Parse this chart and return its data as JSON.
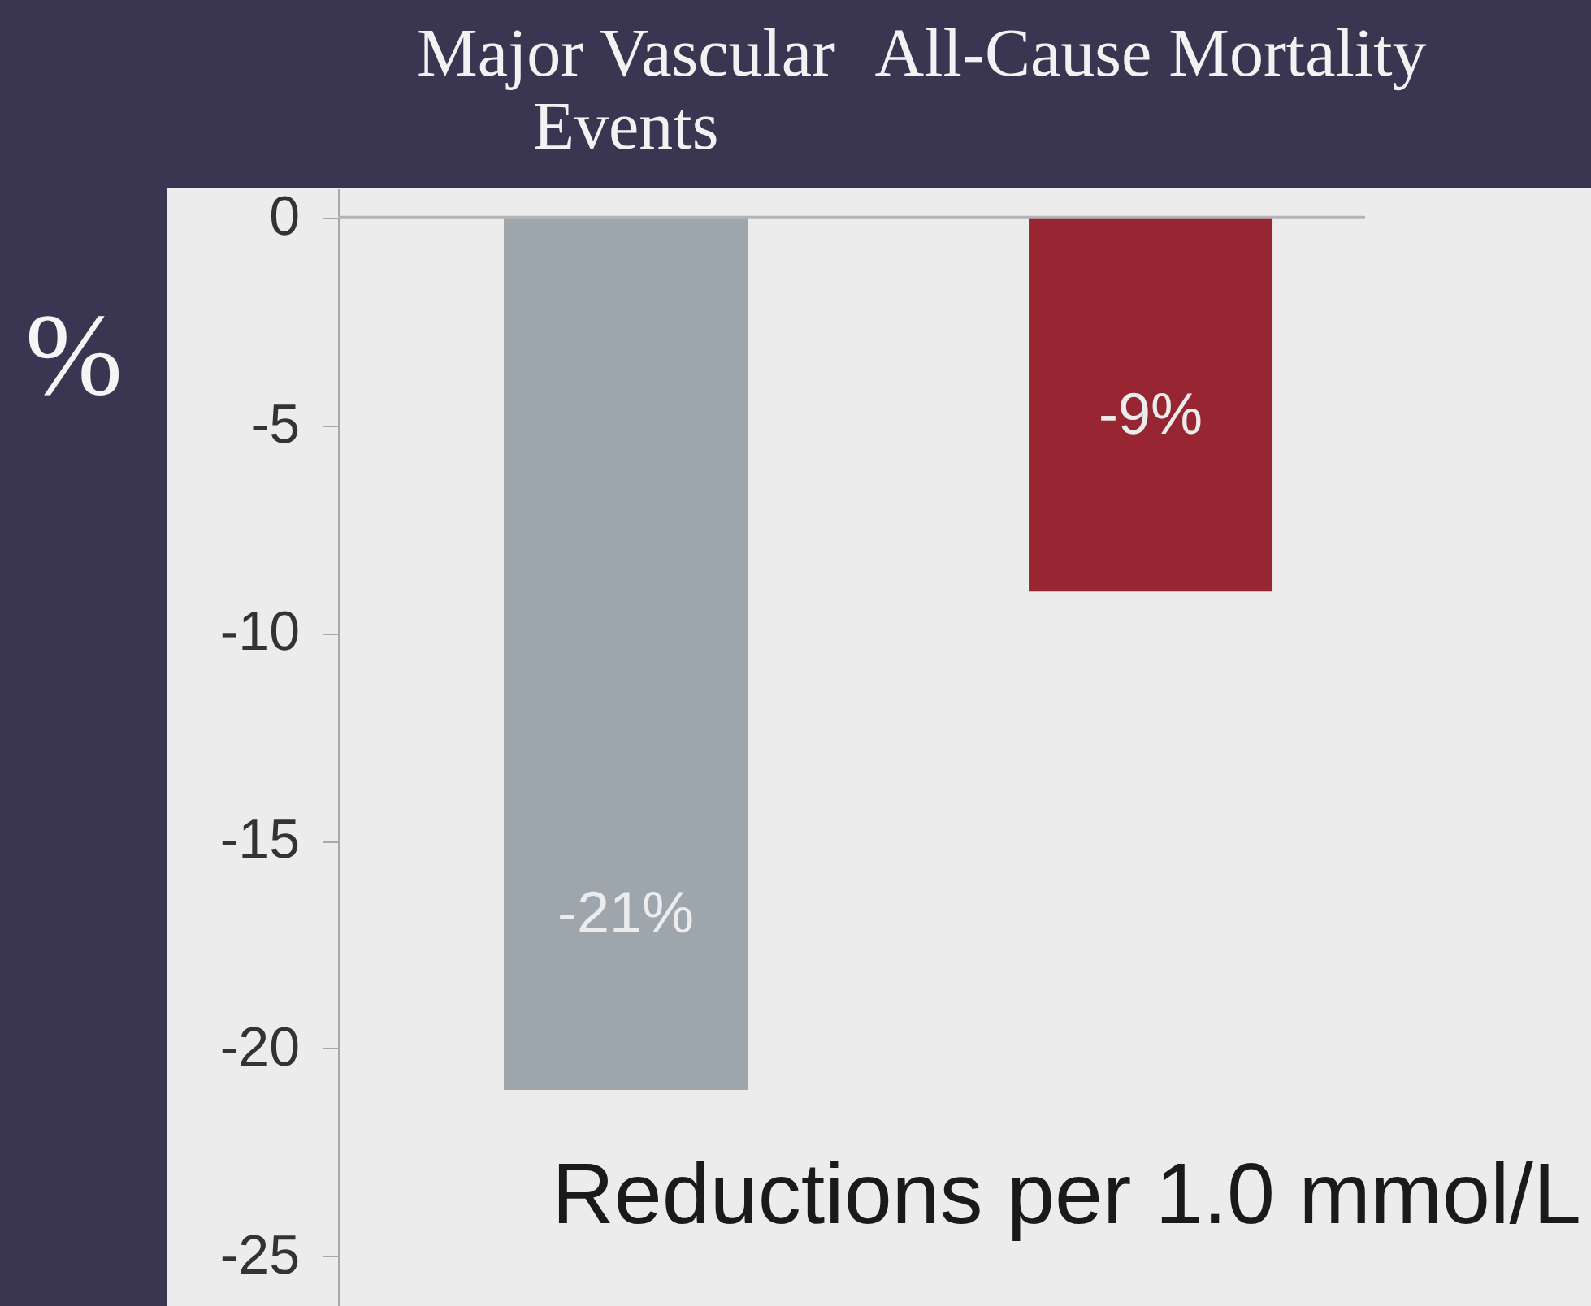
{
  "chart_data": {
    "type": "bar",
    "categories": [
      "Major Vascular Events",
      "All-Cause Mortality"
    ],
    "values": [
      -21,
      -9
    ],
    "colors": [
      "#9ea6ad",
      "#972532"
    ],
    "value_labels": [
      "-21%",
      "-9%"
    ],
    "ylabel": "%",
    "ylim": [
      -26.2,
      0.7
    ],
    "yticks": [
      0,
      -5,
      -10,
      -15,
      -20,
      -25
    ],
    "ref_lines": [
      {
        "axis": "y",
        "value": 0,
        "color": "#b4b4b4"
      }
    ],
    "annotations": [
      "Reductions per 1.0 mmol/L"
    ]
  }
}
